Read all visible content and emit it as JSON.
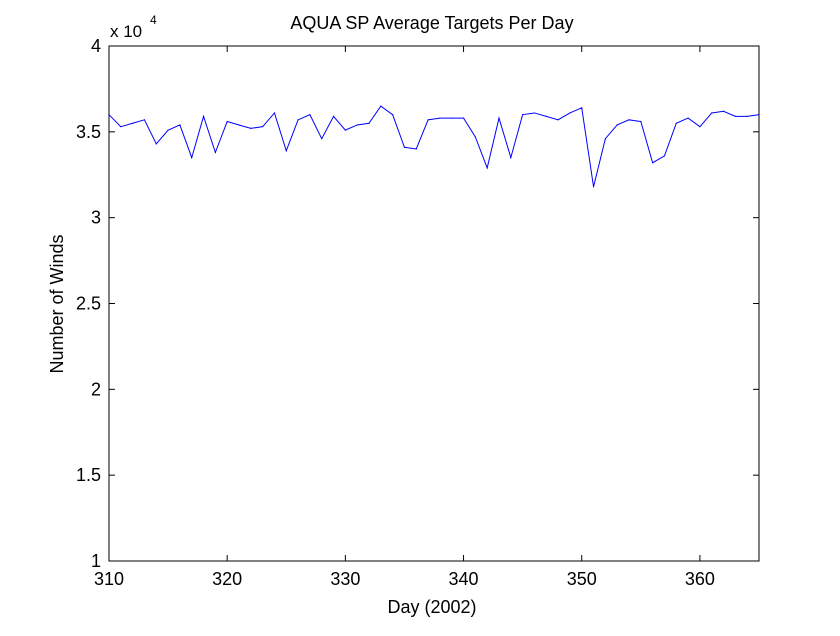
{
  "chart_data": {
    "type": "line",
    "title": "AQUA SP Average Targets Per Day",
    "xlabel": "Day (2002)",
    "ylabel": "Number of Winds",
    "exponent_label": {
      "prefix": "x 10",
      "power": "4"
    },
    "xlim": [
      310,
      365
    ],
    "ylim": [
      1,
      4
    ],
    "xticks": [
      310,
      320,
      330,
      340,
      350,
      360
    ],
    "yticks": [
      1,
      1.5,
      2,
      2.5,
      3,
      3.5,
      4
    ],
    "xtick_labels": [
      "310",
      "320",
      "330",
      "340",
      "350",
      "360"
    ],
    "ytick_labels": [
      "1",
      "1.5",
      "2",
      "2.5",
      "3",
      "3.5",
      "4"
    ],
    "grid": false,
    "line_color": "#0000ff",
    "series": [
      {
        "x": [
          310,
          311,
          312,
          313,
          314,
          315,
          316,
          317,
          318,
          319,
          320,
          321,
          322,
          323,
          324,
          325,
          326,
          327,
          328,
          329,
          330,
          331,
          332,
          333,
          334,
          335,
          336,
          337,
          338,
          339,
          340,
          341,
          342,
          343,
          344,
          345,
          346,
          347,
          348,
          349,
          350,
          351,
          352,
          353,
          354,
          355,
          356,
          357,
          358,
          359,
          360,
          361,
          362,
          363,
          364,
          365
        ],
        "values": [
          3.6,
          3.53,
          3.55,
          3.57,
          3.43,
          3.51,
          3.54,
          3.35,
          3.59,
          3.38,
          3.56,
          3.54,
          3.52,
          3.53,
          3.61,
          3.39,
          3.57,
          3.6,
          3.46,
          3.59,
          3.51,
          3.54,
          3.55,
          3.65,
          3.6,
          3.41,
          3.4,
          3.57,
          3.58,
          3.58,
          3.58,
          3.47,
          3.29,
          3.58,
          3.35,
          3.6,
          3.61,
          3.59,
          3.57,
          3.61,
          3.64,
          3.18,
          3.46,
          3.54,
          3.57,
          3.56,
          3.32,
          3.36,
          3.55,
          3.58,
          3.53,
          3.61,
          3.62,
          3.59,
          3.59,
          3.6
        ]
      }
    ]
  }
}
